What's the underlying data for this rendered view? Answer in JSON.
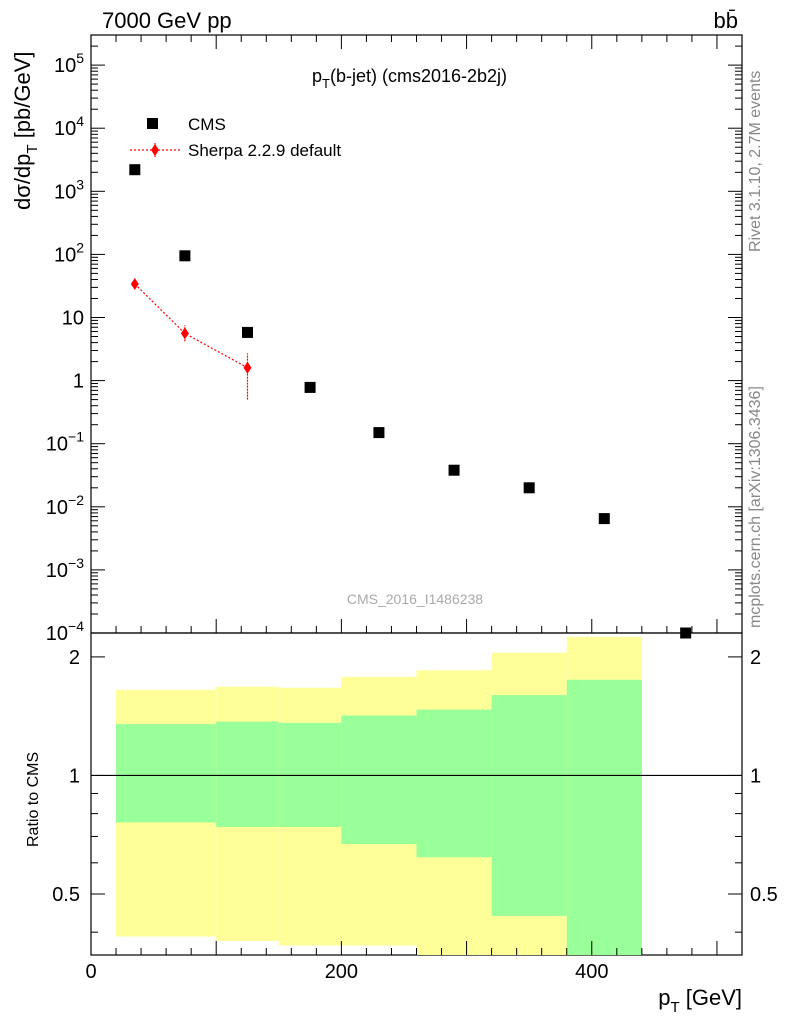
{
  "header": {
    "energy": "7000 GeV pp",
    "process": "bb̄",
    "plot_title": "p_T(b-jet) (cms2016-2b2j)"
  },
  "side": {
    "rivet": "Rivet 3.1.10,  2.7M events",
    "mcplots": "mcplots.cern.ch [arXiv:1306.3436]"
  },
  "watermark": "CMS_2016_I1486238",
  "colors": {
    "data": "#000000",
    "sherpa": "#ff0000",
    "band_outer": "#ffff99",
    "band_inner": "#99ff99"
  },
  "chart_data": [
    {
      "type": "scatter",
      "panel": "main",
      "xlabel": "p_T [GeV]",
      "ylabel": "dσ/dp_T [pb/GeV]",
      "xlim": [
        0,
        520
      ],
      "ylim": [
        0.0001,
        300000
      ],
      "yscale": "log",
      "yticks": [
        "10^-4",
        "10^-3",
        "10^-2",
        "10^-1",
        "1",
        "10",
        "10^2",
        "10^3",
        "10^4",
        "10^5"
      ],
      "legend_position": "top-left",
      "series": [
        {
          "name": "CMS",
          "marker": "square",
          "x": [
            35,
            75,
            125,
            175,
            230,
            290,
            350,
            410,
            475
          ],
          "y": [
            2200,
            95,
            5.8,
            0.78,
            0.15,
            0.038,
            0.02,
            0.0065,
            9e-05
          ]
        },
        {
          "name": "Sherpa 2.2.9 default",
          "marker": "diamond",
          "line": "dotted",
          "x": [
            35,
            75,
            125
          ],
          "y": [
            34,
            5.6,
            1.6
          ],
          "yerr_low": [
            30,
            4.2,
            0.5
          ],
          "yerr_high": [
            39,
            7.5,
            2.7
          ]
        }
      ]
    },
    {
      "type": "area",
      "panel": "ratio",
      "ylabel": "Ratio to CMS",
      "xlabel": "p_T [GeV]",
      "xlim": [
        0,
        520
      ],
      "ylim": [
        0.35,
        2.3
      ],
      "xticks": [
        "0",
        "200",
        "400"
      ],
      "yticks": [
        "0.5",
        "1",
        "2"
      ],
      "bands": {
        "x_edges": [
          20,
          100,
          150,
          200,
          260,
          320,
          380,
          440
        ],
        "outer_low": [
          0.39,
          0.38,
          0.37,
          0.37,
          0.35,
          0.35,
          0.35
        ],
        "outer_high": [
          1.65,
          1.68,
          1.67,
          1.78,
          1.85,
          2.05,
          2.25
        ],
        "inner_low": [
          0.76,
          0.74,
          0.74,
          0.67,
          0.62,
          0.44,
          0.35
        ],
        "inner_high": [
          1.35,
          1.37,
          1.36,
          1.42,
          1.47,
          1.6,
          1.75
        ]
      },
      "reference_line": 1
    }
  ]
}
